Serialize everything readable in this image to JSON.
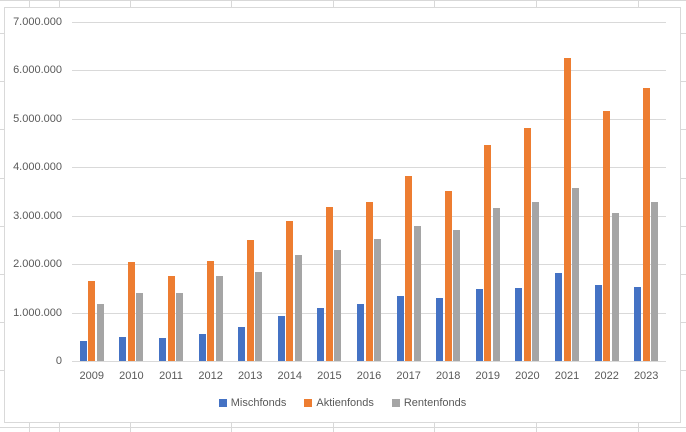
{
  "chart_data": {
    "type": "bar",
    "title": "",
    "categories": [
      "2009",
      "2010",
      "2011",
      "2012",
      "2013",
      "2014",
      "2015",
      "2016",
      "2017",
      "2018",
      "2019",
      "2020",
      "2021",
      "2022",
      "2023"
    ],
    "series": [
      {
        "name": "Mischfonds",
        "color": "#4472C4",
        "values": [
          410000,
          490000,
          480000,
          560000,
          710000,
          930000,
          1100000,
          1170000,
          1340000,
          1310000,
          1490000,
          1500000,
          1810000,
          1570000,
          1530000
        ]
      },
      {
        "name": "Aktienfonds",
        "color": "#ED7D31",
        "values": [
          1650000,
          2040000,
          1750000,
          2070000,
          2500000,
          2900000,
          3180000,
          3290000,
          3830000,
          3520000,
          4460000,
          4810000,
          6260000,
          5170000,
          5630000
        ]
      },
      {
        "name": "Rentenfonds",
        "color": "#A5A5A5",
        "values": [
          1180000,
          1400000,
          1410000,
          1760000,
          1830000,
          2190000,
          2290000,
          2510000,
          2790000,
          2700000,
          3170000,
          3280000,
          3580000,
          3050000,
          3280000
        ]
      }
    ],
    "y_axis": {
      "min": 0,
      "max": 7000000,
      "step": 1000000,
      "tick_labels": [
        "0",
        "1.000.000",
        "2.000.000",
        "3.000.000",
        "4.000.000",
        "5.000.000",
        "6.000.000",
        "7.000.000"
      ]
    },
    "xlabel": "",
    "ylabel": "",
    "grid": true,
    "legend_position": "bottom",
    "legend_entries": [
      "Mischfonds",
      "Aktienfonds",
      "Rentenfonds"
    ],
    "colors": {
      "gridline": "#D9D9D9",
      "chart_border": "#D9D9D9",
      "axis_text": "#595959"
    }
  }
}
